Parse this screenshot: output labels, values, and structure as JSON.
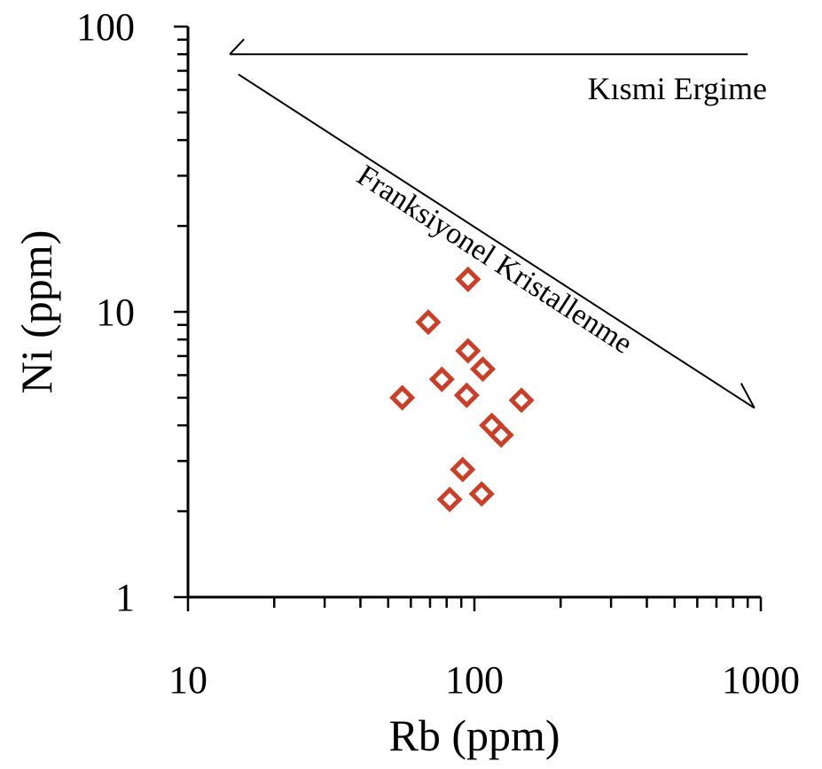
{
  "chart_data": {
    "type": "scatter",
    "title": "",
    "xlabel": "Rb (ppm)",
    "ylabel": "Ni  (ppm)",
    "xscale": "log",
    "yscale": "log",
    "xlim": [
      10,
      1000
    ],
    "ylim": [
      1,
      100
    ],
    "x_tick_labels": [
      "10",
      "100",
      "1000"
    ],
    "y_tick_labels": [
      "1",
      "10",
      "100"
    ],
    "grid": false,
    "legend": "none",
    "marker": "open-diamond",
    "marker_color": "#C8402A",
    "series": [
      {
        "points": [
          {
            "x": 95,
            "y": 13
          },
          {
            "x": 69,
            "y": 9.2
          },
          {
            "x": 95,
            "y": 7.3
          },
          {
            "x": 107,
            "y": 6.3
          },
          {
            "x": 77,
            "y": 5.8
          },
          {
            "x": 56,
            "y": 5.0
          },
          {
            "x": 94,
            "y": 5.1
          },
          {
            "x": 146,
            "y": 4.9
          },
          {
            "x": 115,
            "y": 4.0
          },
          {
            "x": 124,
            "y": 3.7
          },
          {
            "x": 91,
            "y": 2.8
          },
          {
            "x": 106,
            "y": 2.3
          },
          {
            "x": 82,
            "y": 2.2
          }
        ]
      }
    ],
    "trend_lines": [
      {
        "label": "Kısmi Ergime",
        "from": {
          "x": 14,
          "y": 80
        },
        "to": {
          "x": 900,
          "y": 80
        }
      },
      {
        "label": "Franksiyonel Kristallenme",
        "from": {
          "x": 15,
          "y": 68
        },
        "to": {
          "x": 950,
          "y": 4.6
        }
      }
    ]
  }
}
